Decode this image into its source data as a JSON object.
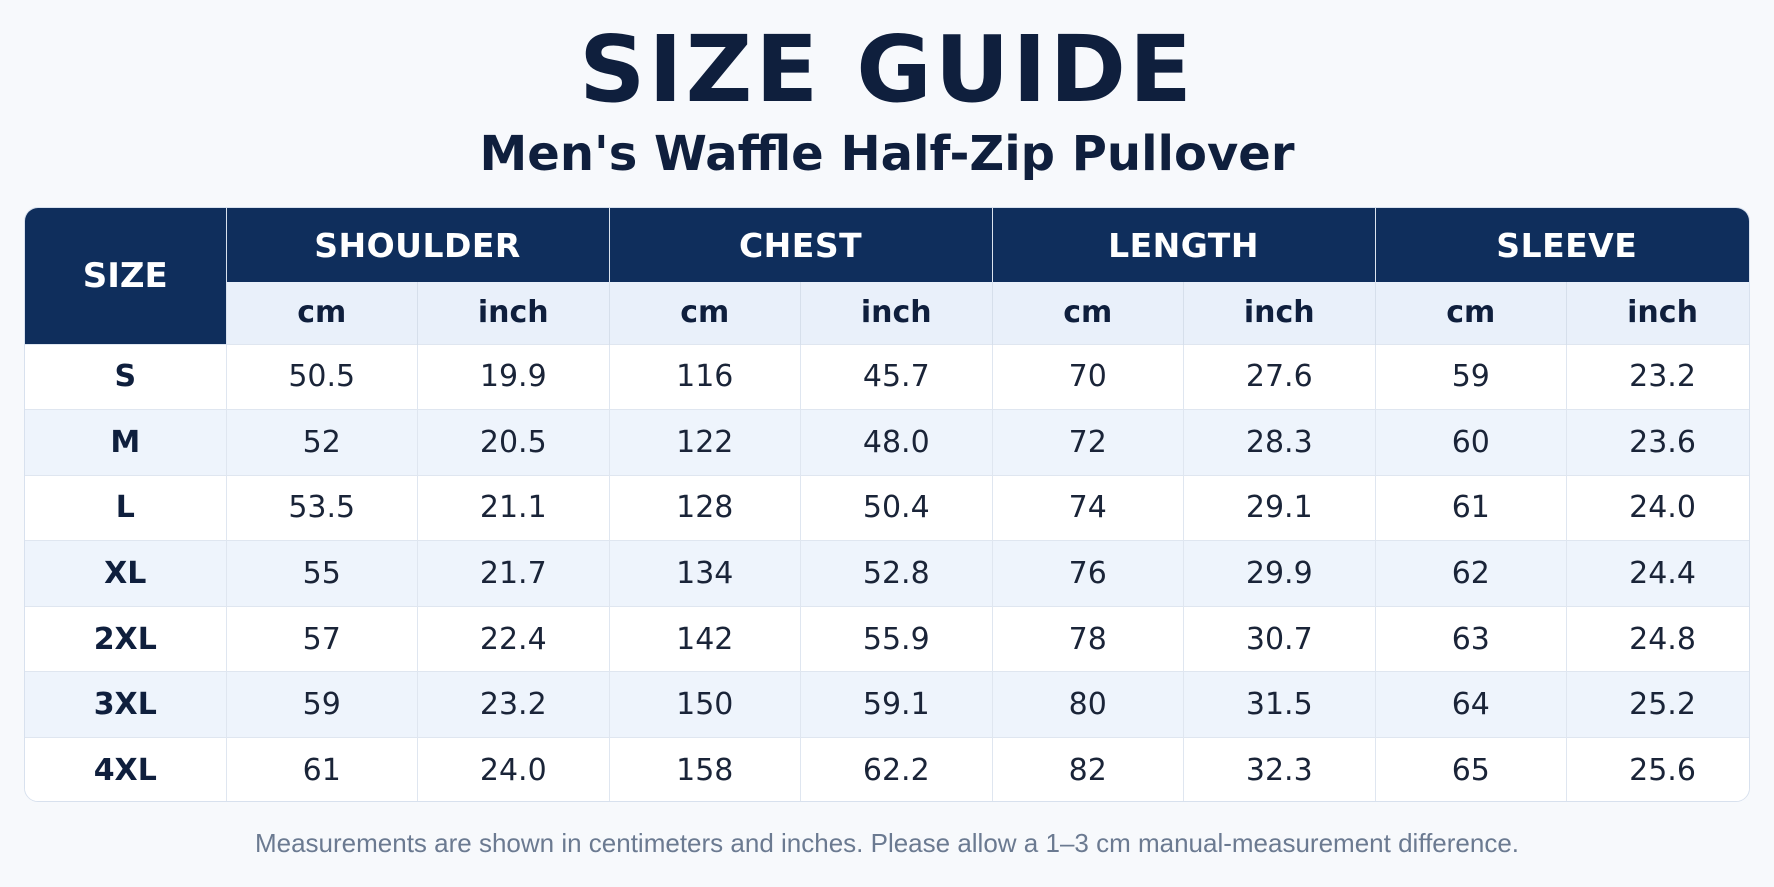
{
  "title": "SIZE GUIDE",
  "subtitle": "Men's Waffle Half-Zip Pullover",
  "table": {
    "size_header": "SIZE",
    "groups": [
      "SHOULDER",
      "CHEST",
      "LENGTH",
      "SLEEVE"
    ],
    "units": [
      "cm",
      "inch",
      "cm",
      "inch",
      "cm",
      "inch",
      "cm",
      "inch"
    ],
    "rows": [
      {
        "size": "S",
        "values": [
          "50.5",
          "19.9",
          "116",
          "45.7",
          "70",
          "27.6",
          "59",
          "23.2"
        ]
      },
      {
        "size": "M",
        "values": [
          "52",
          "20.5",
          "122",
          "48.0",
          "72",
          "28.3",
          "60",
          "23.6"
        ]
      },
      {
        "size": "L",
        "values": [
          "53.5",
          "21.1",
          "128",
          "50.4",
          "74",
          "29.1",
          "61",
          "24.0"
        ]
      },
      {
        "size": "XL",
        "values": [
          "55",
          "21.7",
          "134",
          "52.8",
          "76",
          "29.9",
          "62",
          "24.4"
        ]
      },
      {
        "size": "2XL",
        "values": [
          "57",
          "22.4",
          "142",
          "55.9",
          "78",
          "30.7",
          "63",
          "24.8"
        ]
      },
      {
        "size": "3XL",
        "values": [
          "59",
          "23.2",
          "150",
          "59.1",
          "80",
          "31.5",
          "64",
          "25.2"
        ]
      },
      {
        "size": "4XL",
        "values": [
          "61",
          "24.0",
          "158",
          "62.2",
          "82",
          "32.3",
          "65",
          "25.6"
        ]
      }
    ]
  },
  "footnote": "Measurements are shown in centimeters and inches. Please allow a 1–3 cm manual-measurement difference.",
  "colors": {
    "header_navy": "#0f2e5c",
    "unit_row_bg": "#e9f0fa",
    "alt_row_bg": "#eef4fc",
    "text_dark": "#0f1f3d"
  }
}
